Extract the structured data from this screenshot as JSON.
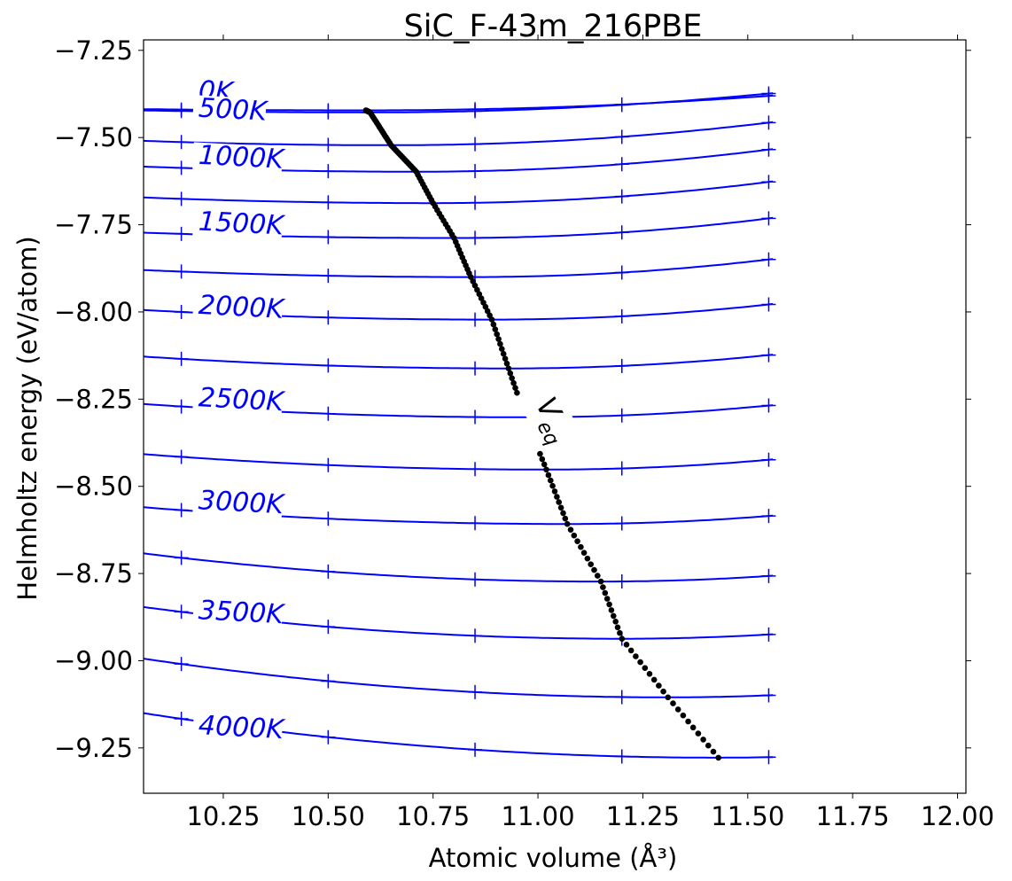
{
  "chart_data": {
    "type": "line",
    "title": "SiC_F-43m_216PBE",
    "xlabel": "Atomic volume (Å³)",
    "ylabel": "Helmholtz energy (eV/atom)",
    "xlim": [
      10.06,
      12.02
    ],
    "ylim": [
      -9.38,
      -7.22
    ],
    "x_ticks": [
      10.25,
      10.5,
      10.75,
      11.0,
      11.25,
      11.5,
      11.75,
      12.0
    ],
    "x_tick_labels": [
      "10.25",
      "10.50",
      "10.75",
      "11.00",
      "11.25",
      "11.50",
      "11.75",
      "12.00"
    ],
    "y_ticks": [
      -7.25,
      -7.5,
      -7.75,
      -8.0,
      -8.25,
      -8.5,
      -8.75,
      -9.0,
      -9.25
    ],
    "y_tick_labels": [
      "−7.25",
      "−7.50",
      "−7.75",
      "−8.00",
      "−8.25",
      "−8.50",
      "−8.75",
      "−9.00",
      "−9.25"
    ],
    "curve_color": "#0000ff",
    "eq_color": "#000000",
    "marker_x": [
      10.15,
      10.5,
      10.85,
      11.2,
      11.55
    ],
    "isotherms": [
      {
        "T": 0,
        "label": "0K",
        "v0": 10.59,
        "f0": -7.422,
        "left": 0.012,
        "right": 0.045
      },
      {
        "T": 250,
        "v0": 10.6,
        "f0": -7.428,
        "left": 0.02,
        "right": 0.06
      },
      {
        "T": 500,
        "label": "500K",
        "v0": 10.65,
        "f0": -7.522,
        "left": 0.036,
        "right": 0.08
      },
      {
        "T": 750,
        "v0": 10.71,
        "f0": -7.598,
        "left": 0.035,
        "right": 0.09
      },
      {
        "T": 1000,
        "label": "1000K",
        "v0": 10.75,
        "f0": -7.688,
        "left": 0.034,
        "right": 0.095
      },
      {
        "T": 1250,
        "v0": 10.8,
        "f0": -7.788,
        "left": 0.028,
        "right": 0.1
      },
      {
        "T": 1500,
        "label": "1500K",
        "v0": 10.84,
        "f0": -7.9,
        "left": 0.033,
        "right": 0.1
      },
      {
        "T": 1750,
        "v0": 10.89,
        "f0": -8.022,
        "left": 0.04,
        "right": 0.1
      },
      {
        "T": 2000,
        "label": "2000K",
        "v0": 10.93,
        "f0": -8.162,
        "left": 0.045,
        "right": 0.1
      },
      {
        "T": 2250,
        "v0": 10.97,
        "f0": -8.302,
        "left": 0.046,
        "right": 0.1
      },
      {
        "T": 2500,
        "label": "2500K",
        "v0": 11.02,
        "f0": -8.452,
        "left": 0.048,
        "right": 0.1
      },
      {
        "T": 2750,
        "v0": 11.07,
        "f0": -8.608,
        "left": 0.047,
        "right": 0.1
      },
      {
        "T": 3000,
        "label": "3000K",
        "v0": 11.15,
        "f0": -8.773,
        "left": 0.068,
        "right": 0.1
      },
      {
        "T": 3250,
        "v0": 11.2,
        "f0": -8.937,
        "left": 0.07,
        "right": 0.1
      },
      {
        "T": 3500,
        "label": "3500K",
        "v0": 11.31,
        "f0": -9.105,
        "left": 0.071,
        "right": 0.1
      },
      {
        "T": 3750,
        "v0": 11.43,
        "f0": -9.278,
        "left": 0.068,
        "right": 0.1
      }
    ],
    "curve_labels": [
      {
        "text": "0K",
        "x": 10.19,
        "y": -7.39,
        "rot": 3
      },
      {
        "text": "500K",
        "x": 10.19,
        "y": -7.44,
        "rot": 3
      },
      {
        "text": "1000K",
        "x": 10.19,
        "y": -7.575,
        "rot": 3
      },
      {
        "text": "1500K",
        "x": 10.19,
        "y": -7.765,
        "rot": 3
      },
      {
        "text": "2000K",
        "x": 10.19,
        "y": -8.005,
        "rot": 3
      },
      {
        "text": "2500K",
        "x": 10.19,
        "y": -8.27,
        "rot": 3
      },
      {
        "text": "3000K",
        "x": 10.19,
        "y": -8.565,
        "rot": 3
      },
      {
        "text": "3500K",
        "x": 10.19,
        "y": -8.88,
        "rot": 3
      },
      {
        "text": "4000K",
        "x": 10.19,
        "y": -9.21,
        "rot": 3
      }
    ],
    "eq_label": {
      "text": "V",
      "sub": "eq",
      "x": 11.01,
      "y": -8.3
    },
    "eq_gap_y": [
      -8.245,
      -8.405
    ]
  }
}
